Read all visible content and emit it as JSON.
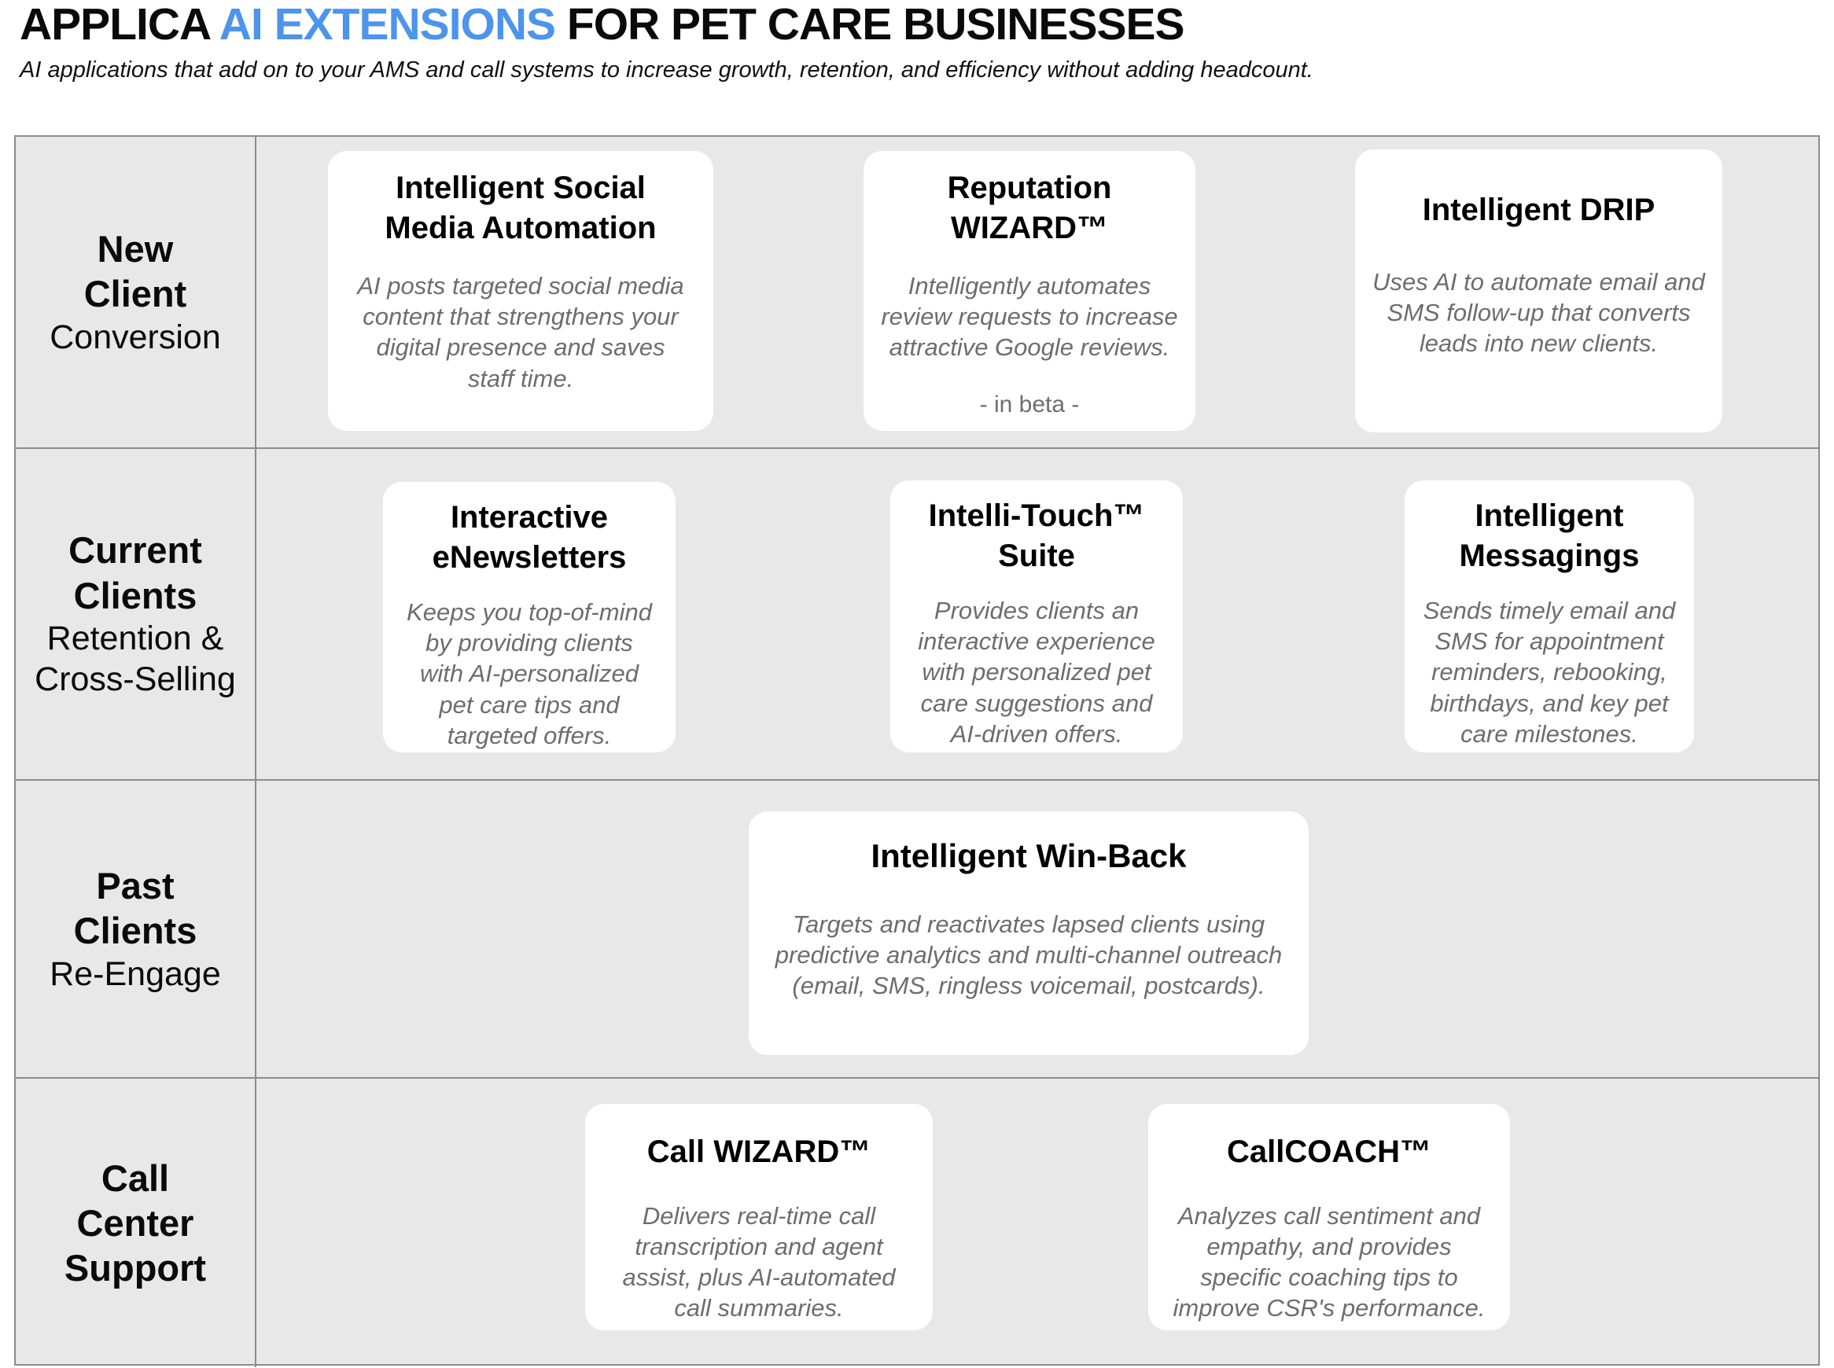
{
  "colors": {
    "highlight": "#4d94ec",
    "cell_background": "#e8e8e8",
    "grid_line": "#8c8c8c",
    "body_text": "#6d6d6d"
  },
  "header": {
    "title_prefix": "APPLICA ",
    "title_highlight": "AI EXTENSIONS",
    "title_suffix": " FOR PET CARE BUSINESSES",
    "subtitle": "AI applications that add on to your AMS and call systems to increase growth, retention, and efficiency without adding headcount."
  },
  "table": {
    "rows": [
      {
        "label": {
          "bold": "New\nClient",
          "sub": "Conversion"
        },
        "cards": [
          {
            "title": "Intelligent Social\nMedia Automation",
            "body": "AI posts targeted social media\ncontent that strengthens your\ndigital presence and saves\nstaff time."
          },
          {
            "title": "Reputation\nWIZARD™",
            "body": "Intelligently automates\nreview requests to increase\nattractive Google reviews.",
            "note": "- in beta -"
          },
          {
            "title": "Intelligent DRIP",
            "body": "Uses AI to automate email and\nSMS follow-up that converts\nleads into new clients."
          }
        ]
      },
      {
        "label": {
          "bold": "Current\nClients",
          "sub": "Retention &\nCross-Selling"
        },
        "cards": [
          {
            "title": "Interactive\neNewsletters",
            "body": "Keeps you top-of-mind\nby providing clients\nwith AI-personalized\npet care tips and\ntargeted offers."
          },
          {
            "title": "Intelli-Touch™\nSuite",
            "body": "Provides clients an\ninteractive experience\nwith personalized pet\ncare suggestions and\nAI-driven offers."
          },
          {
            "title": "Intelligent\nMessagings",
            "body": "Sends timely email and\nSMS for appointment\nreminders, rebooking,\nbirthdays, and key pet\ncare milestones."
          }
        ]
      },
      {
        "label": {
          "bold": "Past\nClients",
          "sub": "Re-Engage"
        },
        "cards": [
          {
            "title": "Intelligent Win-Back",
            "body": "Targets and reactivates lapsed clients using\npredictive analytics and multi-channel outreach\n(email, SMS, ringless voicemail, postcards)."
          }
        ]
      },
      {
        "label": {
          "bold": "Call\nCenter\nSupport",
          "sub": ""
        },
        "cards": [
          {
            "title": "Call WIZARD™",
            "body": "Delivers real-time call\ntranscription and agent\nassist, plus AI-automated\ncall summaries."
          },
          {
            "title": "CallCOACH™",
            "body": "Analyzes call sentiment and\nempathy, and provides\nspecific coaching tips to\nimprove CSR's performance."
          }
        ]
      }
    ]
  }
}
